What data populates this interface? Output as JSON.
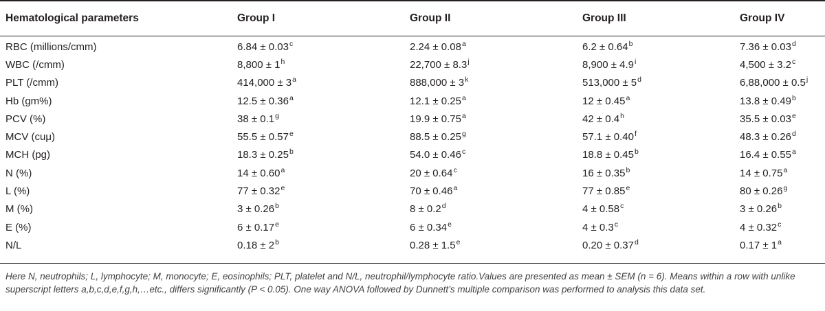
{
  "table": {
    "headers": [
      "Hematological parameters",
      "Group I",
      "Group II",
      "Group III",
      "Group IV"
    ],
    "rows": [
      {
        "param": "RBC (millions/cmm)",
        "cells": [
          {
            "v": "6.84 ± 0.03",
            "s": "c"
          },
          {
            "v": "2.24 ± 0.08",
            "s": "a"
          },
          {
            "v": "6.2 ± 0.64",
            "s": "b"
          },
          {
            "v": "7.36 ± 0.03",
            "s": "d"
          }
        ]
      },
      {
        "param": "WBC (/cmm)",
        "cells": [
          {
            "v": "8,800 ± 1",
            "s": "h"
          },
          {
            "v": "22,700 ± 8.3",
            "s": "j"
          },
          {
            "v": "8,900 ± 4.9",
            "s": "i"
          },
          {
            "v": "4,500 ± 3.2",
            "s": "c"
          }
        ]
      },
      {
        "param": "PLT (/cmm)",
        "cells": [
          {
            "v": "414,000 ± 3",
            "s": "a"
          },
          {
            "v": "888,000 ± 3",
            "s": "k"
          },
          {
            "v": "513,000 ± 5",
            "s": "d"
          },
          {
            "v": "6,88,000 ± 0.5",
            "s": "j"
          }
        ]
      },
      {
        "param": "Hb (gm%)",
        "cells": [
          {
            "v": "12.5 ± 0.36",
            "s": "a"
          },
          {
            "v": "12.1 ± 0.25",
            "s": "a"
          },
          {
            "v": "12 ± 0.45",
            "s": "a"
          },
          {
            "v": "13.8 ± 0.49",
            "s": "b"
          }
        ]
      },
      {
        "param": "PCV (%)",
        "cells": [
          {
            "v": "38 ± 0.1",
            "s": "g"
          },
          {
            "v": "19.9 ± 0.75",
            "s": "a"
          },
          {
            "v": "42 ± 0.4",
            "s": "h"
          },
          {
            "v": "35.5 ± 0.03",
            "s": "e"
          }
        ]
      },
      {
        "param": "MCV (cuμ)",
        "cells": [
          {
            "v": "55.5 ± 0.57",
            "s": "e"
          },
          {
            "v": "88.5 ± 0.25",
            "s": "g"
          },
          {
            "v": "57.1 ± 0.40",
            "s": "f"
          },
          {
            "v": "48.3 ± 0.26",
            "s": "d"
          }
        ]
      },
      {
        "param": "MCH (pg)",
        "cells": [
          {
            "v": "18.3 ± 0.25",
            "s": "b"
          },
          {
            "v": "54.0 ± 0.46",
            "s": "c"
          },
          {
            "v": "18.8 ± 0.45",
            "s": "b"
          },
          {
            "v": "16.4 ± 0.55",
            "s": "a"
          }
        ]
      },
      {
        "param": "N (%)",
        "cells": [
          {
            "v": "14 ± 0.60",
            "s": "a"
          },
          {
            "v": "20 ± 0.64",
            "s": "c"
          },
          {
            "v": "16 ± 0.35",
            "s": "b"
          },
          {
            "v": "14 ± 0.75",
            "s": "a"
          }
        ]
      },
      {
        "param": "L (%)",
        "cells": [
          {
            "v": "77 ± 0.32",
            "s": "e"
          },
          {
            "v": "70 ± 0.46",
            "s": "a"
          },
          {
            "v": "77 ± 0.85",
            "s": "e"
          },
          {
            "v": "80 ± 0.26",
            "s": "g"
          }
        ]
      },
      {
        "param": "M (%)",
        "cells": [
          {
            "v": "3 ± 0.26",
            "s": "b"
          },
          {
            "v": "8 ± 0.2",
            "s": "d"
          },
          {
            "v": "4 ± 0.58",
            "s": "c"
          },
          {
            "v": "3 ± 0.26",
            "s": "b"
          }
        ]
      },
      {
        "param": "E (%)",
        "cells": [
          {
            "v": "6 ± 0.17",
            "s": "e"
          },
          {
            "v": "6 ± 0.34",
            "s": "e"
          },
          {
            "v": "4 ± 0.3",
            "s": "c"
          },
          {
            "v": "4 ± 0.32",
            "s": "c"
          }
        ]
      },
      {
        "param": "N/L",
        "cells": [
          {
            "v": "0.18 ± 2",
            "s": "b"
          },
          {
            "v": "0.28 ± 1.5",
            "s": "e"
          },
          {
            "v": "0.20 ± 0.37",
            "s": "d"
          },
          {
            "v": "0.17 ± 1",
            "s": "a"
          }
        ]
      }
    ]
  },
  "footnote": "Here N, neutrophils; L, lymphocyte; M, monocyte; E, eosinophils; PLT, platelet and N/L, neutrophil/lymphocyte ratio.Values are presented as mean ± SEM (n = 6). Means within a row with unlike superscript letters a,b,c,d,e,f,g,h,…etc., differs significantly (P < 0.05). One way ANOVA followed by Dunnett’s multiple comparison was performed to analysis this data set."
}
